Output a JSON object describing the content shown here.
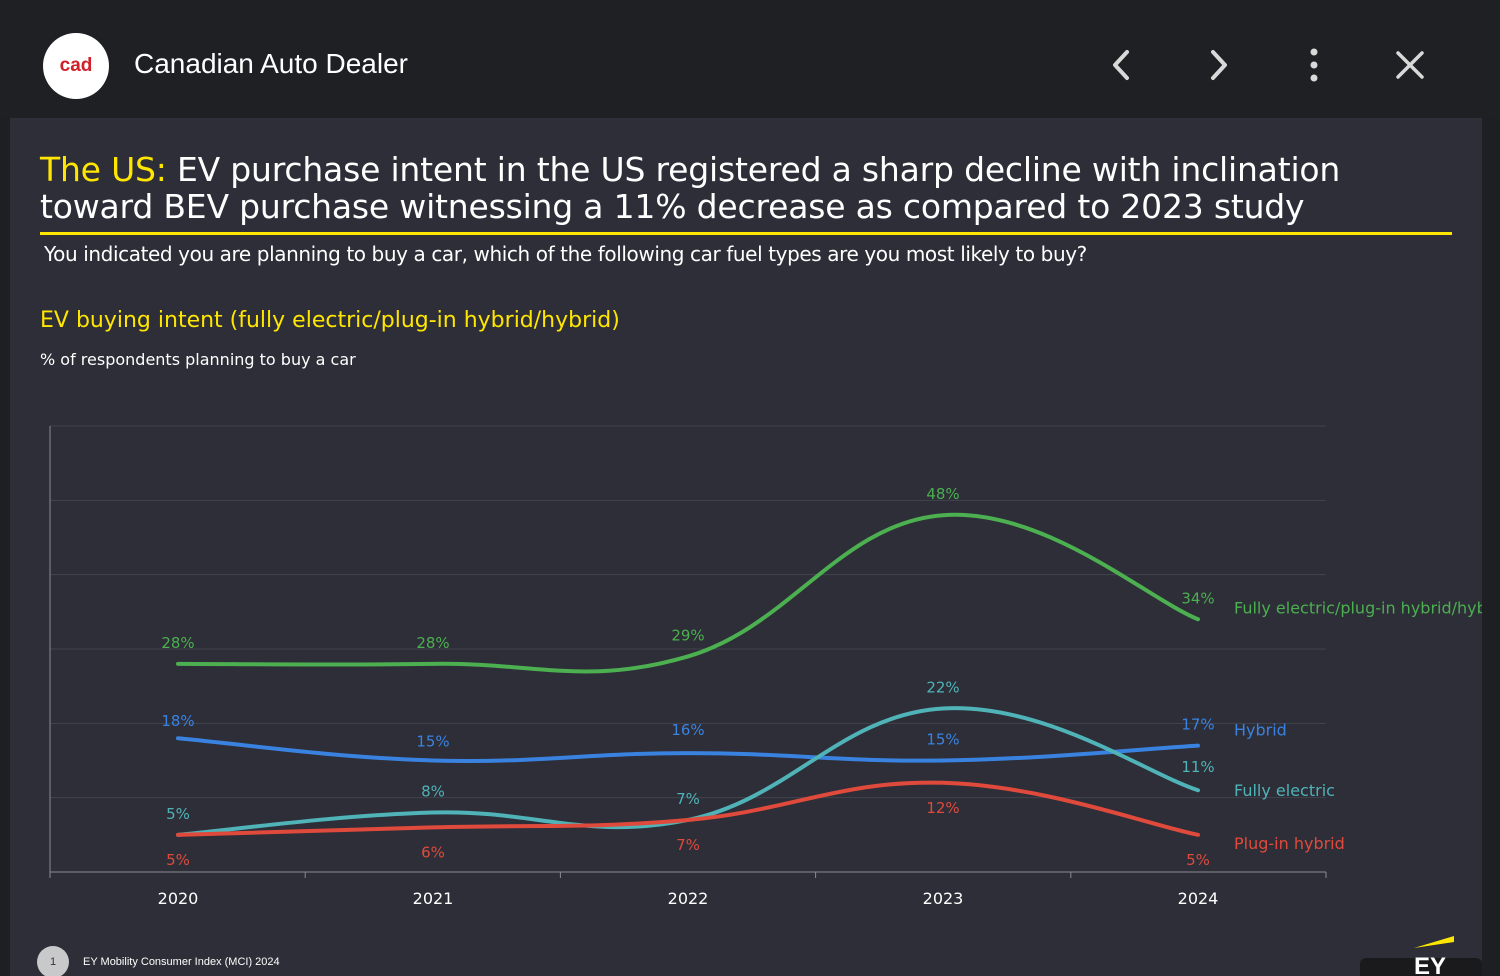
{
  "app": {
    "logo_text": "cad",
    "title": "Canadian Auto Dealer"
  },
  "slide": {
    "headline_highlight": "The US:",
    "headline_rest": " EV purchase intent in the US registered a sharp decline with inclination toward BEV purchase witnessing a 11% decrease as compared to 2023 study",
    "question": "You indicated you are planning to buy a car, which of the following car fuel types are you most likely to buy?",
    "chart_title": "EV buying intent (fully electric/plug-in hybrid/hybrid)",
    "chart_subtitle": "% of respondents planning to buy a car",
    "footnote_number": "1",
    "footnote": "EY Mobility Consumer Index (MCI) 2024",
    "brand_mark": "EY"
  },
  "chart_data": {
    "type": "line",
    "x": [
      "2020",
      "2021",
      "2022",
      "2023",
      "2024"
    ],
    "series": [
      {
        "name": "Fully electric/plug-in hybrid/hybrid",
        "values": [
          28,
          28,
          29,
          48,
          34
        ],
        "labels": [
          "28%",
          "28%",
          "29%",
          "48%",
          "34%"
        ],
        "color": "#4caf50"
      },
      {
        "name": "Hybrid",
        "values": [
          18,
          15,
          16,
          15,
          17
        ],
        "labels": [
          "18%",
          "15%",
          "16%",
          "15%",
          "17%"
        ],
        "color": "#3a82e0"
      },
      {
        "name": "Fully electric",
        "values": [
          5,
          8,
          7,
          22,
          11
        ],
        "labels": [
          "5%",
          "8%",
          "7%",
          "22%",
          "11%"
        ],
        "color": "#4fb3b8"
      },
      {
        "name": "Plug-in hybrid",
        "values": [
          5,
          6,
          7,
          12,
          5
        ],
        "labels": [
          "5%",
          "6%",
          "7%",
          "12%",
          "5%"
        ],
        "color": "#e04a3c"
      }
    ],
    "ylim": [
      0,
      60
    ],
    "grid": true,
    "legend": "right, at line ends"
  },
  "colors": {
    "accent": "#ffe600",
    "background": "#2d2e37",
    "topbar": "#1f2024"
  },
  "icons": {
    "prev": "chevron-left-icon",
    "next": "chevron-right-icon",
    "more": "more-vertical-icon",
    "close": "close-icon"
  }
}
